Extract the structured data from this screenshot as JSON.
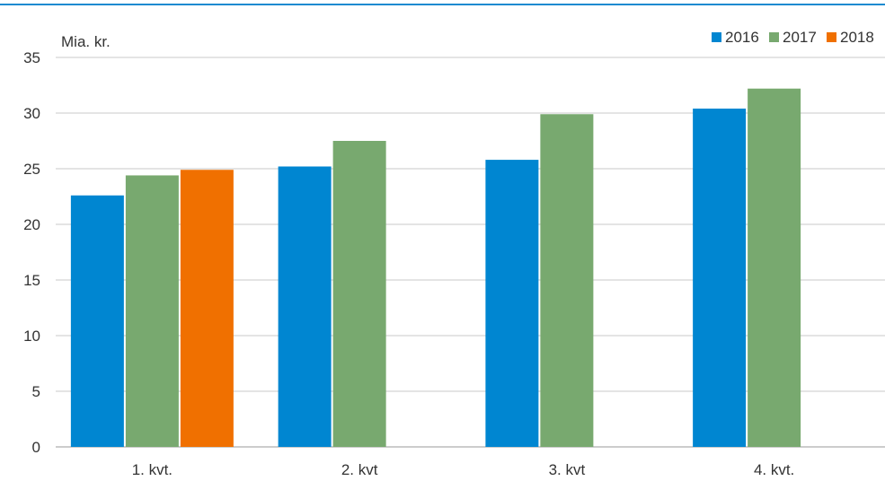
{
  "chart_data": {
    "type": "bar",
    "ylabel": "Mia. kr.",
    "ylim": [
      0,
      35
    ],
    "yticks": [
      0,
      5,
      10,
      15,
      20,
      25,
      30,
      35
    ],
    "grid": true,
    "legend_position": "top-right",
    "categories": [
      "1. kvt.",
      "2. kvt",
      "3. kvt",
      "4. kvt."
    ],
    "series": [
      {
        "name": "2016",
        "color": "#0086d1",
        "values": [
          22.6,
          25.2,
          25.8,
          30.4
        ]
      },
      {
        "name": "2017",
        "color": "#78a96f",
        "values": [
          24.4,
          27.5,
          29.9,
          32.2
        ]
      },
      {
        "name": "2018",
        "color": "#f07000",
        "values": [
          24.9,
          null,
          null,
          null
        ]
      }
    ]
  }
}
